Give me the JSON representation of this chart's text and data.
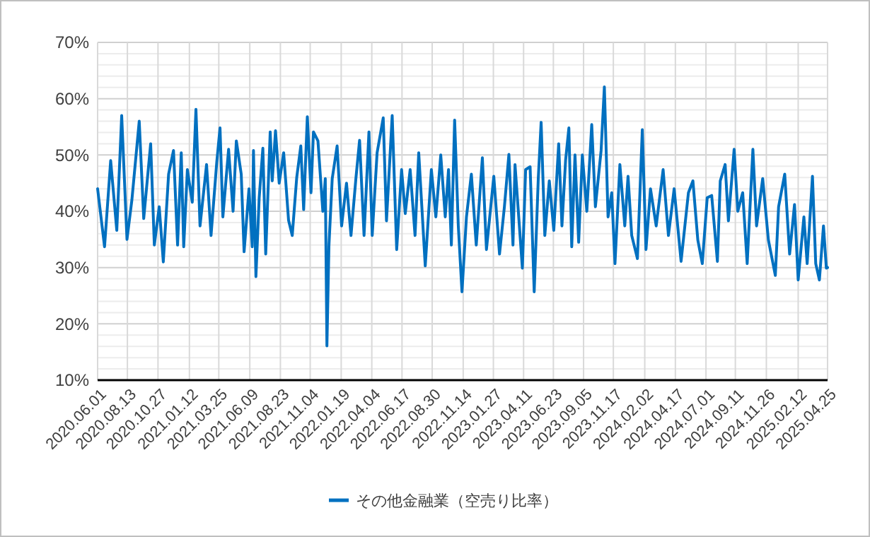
{
  "chart_data": {
    "type": "line",
    "legend": "bottom",
    "grid": true,
    "ylim": [
      10,
      70
    ],
    "yticks": [
      {
        "value": 10,
        "label": "10%"
      },
      {
        "value": 20,
        "label": "20%"
      },
      {
        "value": 30,
        "label": "30%"
      },
      {
        "value": 40,
        "label": "40%"
      },
      {
        "value": 50,
        "label": "50%"
      },
      {
        "value": 60,
        "label": "60%"
      },
      {
        "value": 70,
        "label": "70%"
      }
    ],
    "xlim": [
      "2020-06-01",
      "2025-04-25"
    ],
    "xticks": [
      {
        "value": "2020-06-01",
        "label": "2020.06.01"
      },
      {
        "value": "2020-08-13",
        "label": "2020.08.13"
      },
      {
        "value": "2020-10-27",
        "label": "2020.10.27"
      },
      {
        "value": "2021-01-12",
        "label": "2021.01.12"
      },
      {
        "value": "2021-03-25",
        "label": "2021.03.25"
      },
      {
        "value": "2021-06-09",
        "label": "2021.06.09"
      },
      {
        "value": "2021-08-23",
        "label": "2021.08.23"
      },
      {
        "value": "2021-11-04",
        "label": "2021.11.04"
      },
      {
        "value": "2022-01-19",
        "label": "2022.01.19"
      },
      {
        "value": "2022-04-04",
        "label": "2022.04.04"
      },
      {
        "value": "2022-06-17",
        "label": "2022.06.17"
      },
      {
        "value": "2022-08-30",
        "label": "2022.08.30"
      },
      {
        "value": "2022-11-14",
        "label": "2022.11.14"
      },
      {
        "value": "2023-01-27",
        "label": "2023.01.27"
      },
      {
        "value": "2023-04-11",
        "label": "2023.04.11"
      },
      {
        "value": "2023-06-23",
        "label": "2023.06.23"
      },
      {
        "value": "2023-09-05",
        "label": "2023.09.05"
      },
      {
        "value": "2023-11-17",
        "label": "2023.11.17"
      },
      {
        "value": "2024-02-02",
        "label": "2024.02.02"
      },
      {
        "value": "2024-04-17",
        "label": "2024.04.17"
      },
      {
        "value": "2024-07-01",
        "label": "2024.07.01"
      },
      {
        "value": "2024-09-11",
        "label": "2024.09.11"
      },
      {
        "value": "2024-11-26",
        "label": "2024.11.26"
      },
      {
        "value": "2025-02-12",
        "label": "2025.02.12"
      },
      {
        "value": "2025-04-25",
        "label": "2025.04.25"
      }
    ],
    "series": [
      {
        "name": "その他金融業（空売り比率）",
        "color": "#0070c0",
        "x": [
          "2020-06-01",
          "2020-06-18",
          "2020-07-03",
          "2020-07-18",
          "2020-07-30",
          "2020-08-12",
          "2020-08-24",
          "2020-09-11",
          "2020-09-22",
          "2020-10-09",
          "2020-10-18",
          "2020-10-30",
          "2020-11-09",
          "2020-11-22",
          "2020-12-04",
          "2020-12-14",
          "2020-12-23",
          "2020-12-29",
          "2021-01-07",
          "2021-01-19",
          "2021-01-28",
          "2021-02-07",
          "2021-02-23",
          "2021-03-06",
          "2021-03-20",
          "2021-03-28",
          "2021-04-04",
          "2021-04-18",
          "2021-04-29",
          "2021-05-07",
          "2021-05-19",
          "2021-05-26",
          "2021-06-07",
          "2021-06-15",
          "2021-06-18",
          "2021-06-24",
          "2021-07-02",
          "2021-07-11",
          "2021-07-18",
          "2021-07-29",
          "2021-08-03",
          "2021-08-11",
          "2021-08-20",
          "2021-08-31",
          "2021-09-12",
          "2021-09-21",
          "2021-10-02",
          "2021-10-12",
          "2021-10-19",
          "2021-10-28",
          "2021-11-06",
          "2021-11-12",
          "2021-11-23",
          "2021-12-05",
          "2021-12-11",
          "2021-12-15",
          "2021-12-20",
          "2021-12-28",
          "2022-01-09",
          "2022-01-20",
          "2022-02-01",
          "2022-02-12",
          "2022-02-24",
          "2022-03-05",
          "2022-03-16",
          "2022-03-28",
          "2022-04-05",
          "2022-04-17",
          "2022-05-02",
          "2022-05-10",
          "2022-05-24",
          "2022-06-04",
          "2022-06-16",
          "2022-06-25",
          "2022-07-07",
          "2022-07-19",
          "2022-07-28",
          "2022-08-13",
          "2022-08-28",
          "2022-09-08",
          "2022-09-20",
          "2022-10-01",
          "2022-10-09",
          "2022-10-16",
          "2022-10-24",
          "2022-11-02",
          "2022-11-11",
          "2022-11-22",
          "2022-12-04",
          "2022-12-16",
          "2022-12-31",
          "2023-01-10",
          "2023-01-28",
          "2023-02-11",
          "2023-02-23",
          "2023-03-06",
          "2023-03-16",
          "2023-03-21",
          "2023-04-08",
          "2023-04-16",
          "2023-04-27",
          "2023-05-07",
          "2023-05-17",
          "2023-05-24",
          "2023-06-02",
          "2023-06-13",
          "2023-06-24",
          "2023-07-06",
          "2023-07-14",
          "2023-07-23",
          "2023-07-31",
          "2023-08-07",
          "2023-08-15",
          "2023-08-24",
          "2023-09-02",
          "2023-09-13",
          "2023-09-25",
          "2023-10-04",
          "2023-10-18",
          "2023-10-26",
          "2023-11-04",
          "2023-11-13",
          "2023-11-21",
          "2023-12-03",
          "2023-12-15",
          "2023-12-23",
          "2024-01-01",
          "2024-01-15",
          "2024-01-27",
          "2024-02-05",
          "2024-02-16",
          "2024-03-01",
          "2024-03-18",
          "2024-03-31",
          "2024-04-14",
          "2024-05-01",
          "2024-05-19",
          "2024-05-30",
          "2024-06-11",
          "2024-06-22",
          "2024-07-04",
          "2024-07-15",
          "2024-07-29",
          "2024-08-05",
          "2024-08-17",
          "2024-08-25",
          "2024-09-08",
          "2024-09-17",
          "2024-09-29",
          "2024-10-10",
          "2024-10-24",
          "2024-11-02",
          "2024-11-17",
          "2024-12-01",
          "2024-12-18",
          "2024-12-26",
          "2025-01-10",
          "2025-01-22",
          "2025-02-03",
          "2025-02-12",
          "2025-02-26",
          "2025-03-06",
          "2025-03-19",
          "2025-03-27",
          "2025-04-05",
          "2025-04-15",
          "2025-04-22",
          "2025-04-25"
        ],
        "values": [
          44,
          33.7,
          49,
          36.6,
          57,
          35,
          42,
          56,
          38.7,
          52,
          34,
          40.8,
          31,
          46.6,
          50.8,
          34,
          50.4,
          33.7,
          47.4,
          41.6,
          58.1,
          37.4,
          48.3,
          35.7,
          48.7,
          54.8,
          39,
          51,
          40,
          52.5,
          46.6,
          32.8,
          44,
          33.7,
          50.8,
          28.4,
          42.4,
          51.2,
          32.4,
          54.1,
          45.4,
          54.3,
          45,
          50.4,
          38.4,
          35.7,
          46,
          51.6,
          40.3,
          56.8,
          43.3,
          54.1,
          52.5,
          40,
          45.8,
          16.1,
          34,
          45.8,
          51.6,
          37.4,
          45,
          35.7,
          45.8,
          52.6,
          35.7,
          54.1,
          35.7,
          50.4,
          56.6,
          38.3,
          57,
          33.2,
          47.4,
          39.6,
          47.4,
          35.7,
          50.4,
          30.3,
          47.4,
          39,
          50,
          39,
          47.4,
          34,
          56.2,
          37.4,
          25.7,
          39,
          46.6,
          34,
          49.5,
          33.2,
          46.2,
          32.4,
          40.8,
          50.1,
          34,
          48.3,
          29.9,
          47.4,
          47.9,
          25.7,
          45.8,
          55.8,
          35.7,
          45.4,
          36.6,
          52,
          37.4,
          49.1,
          54.8,
          33.7,
          50,
          34.5,
          50,
          40,
          55.4,
          40.8,
          50.8,
          62.1,
          39,
          43.3,
          30.7,
          48.3,
          37.4,
          46.2,
          35.7,
          31.6,
          54.5,
          33.2,
          44,
          37.4,
          47.4,
          35.7,
          44,
          31.1,
          43.3,
          45.4,
          34.9,
          30.7,
          42.4,
          42.8,
          31.1,
          45.4,
          48.3,
          38.3,
          51,
          40,
          43.3,
          30.7,
          51,
          37.4,
          45.8,
          34.9,
          28.6,
          40.8,
          46.6,
          32.4,
          41.2,
          27.8,
          39,
          30.7,
          46.2,
          30.7,
          27.8,
          37.4,
          29.9,
          30
        ]
      }
    ]
  }
}
